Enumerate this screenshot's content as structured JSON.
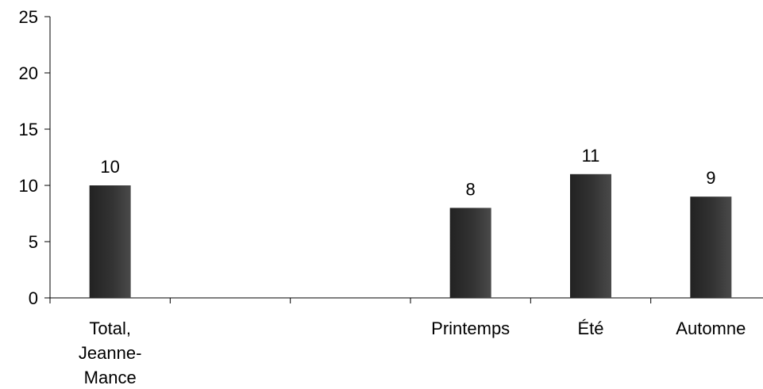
{
  "chart_data": {
    "type": "bar",
    "categories": [
      [
        "Total,",
        "Jeanne-",
        "Mance"
      ],
      [
        ""
      ],
      [
        ""
      ],
      [
        "Printemps"
      ],
      [
        "Été"
      ],
      [
        "Automne"
      ]
    ],
    "values": [
      10,
      null,
      null,
      8,
      11,
      9
    ],
    "data_labels": [
      "10",
      "",
      "",
      "8",
      "11",
      "9"
    ],
    "yticks": [
      "0",
      "5",
      "10",
      "15",
      "20",
      "25"
    ],
    "ylim": [
      0,
      25
    ],
    "title": "",
    "xlabel": "",
    "ylabel": "",
    "bar_color": "#2b2b2b",
    "bar_highlight_color": "#4a4a4a",
    "axis_color": "#000000",
    "grid": false,
    "legend": "none"
  }
}
